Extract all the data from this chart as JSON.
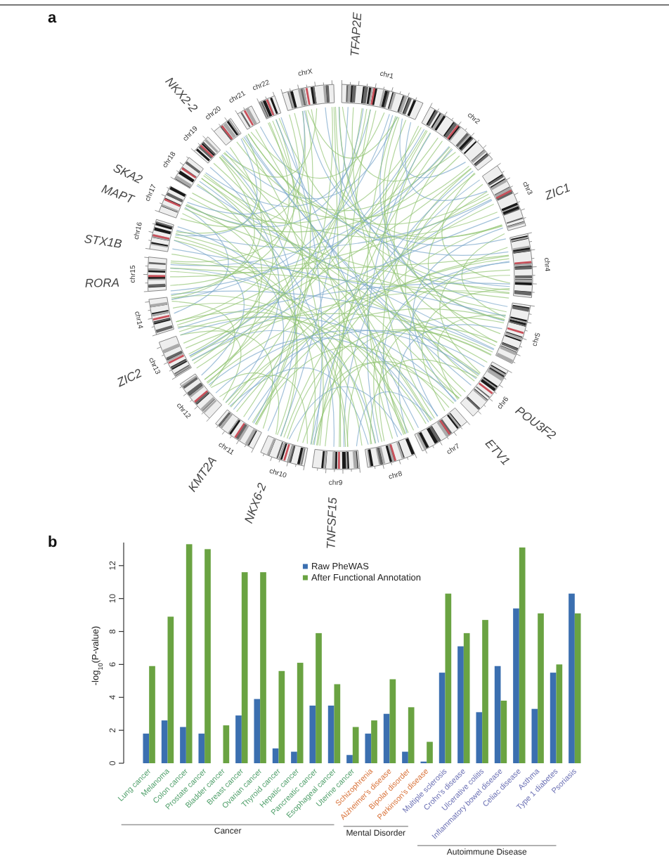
{
  "chart_data": [
    {
      "type": "other",
      "title": "a",
      "categories": [
        "chr1",
        "chr2",
        "chr3",
        "chr4",
        "chr5",
        "chr6",
        "chr7",
        "chr8",
        "chr9",
        "chr10",
        "chr11",
        "chr12",
        "chr13",
        "chr14",
        "chr15",
        "chr16",
        "chr17",
        "chr18",
        "chr19",
        "chr20",
        "chr21",
        "chr22",
        "chrX"
      ],
      "annotations": [
        "TFAP2E",
        "ZIC1",
        "POU3F2",
        "ETV1",
        "TNFSF15",
        "NKX6-2",
        "KMT2A",
        "ZIC2",
        "RORA",
        "STX1B",
        "MAPT",
        "SKA2",
        "NKX2-2"
      ]
    },
    {
      "type": "bar",
      "title": "b",
      "ylabel": "-log$_{10}$(P-value)",
      "categories": [
        "Lung cancer",
        "Melanoma",
        "Colon cancer",
        "Prostate cancer",
        "Bladder cancer",
        "Breast cancer",
        "Ovarian cancer",
        "Thyroid cancer",
        "Hepatic cancer",
        "Pancreatic cancer",
        "Esophageal cancer",
        "Uterine cancer",
        "Schizophrenia",
        "Alzheimer's disease",
        "Bipolar disorder",
        "Parkinson's disease",
        "Multiple sclerosis",
        "Crohn's disease",
        "Ulcerative colitis",
        "Inflammatory bowel disease",
        "Celiac disease",
        "Asthma",
        "Type 1 diabetes",
        "Psoriasis"
      ],
      "series": [
        {
          "name": "Raw PheWAS",
          "color": "#3b6fb0",
          "values": [
            1.8,
            2.6,
            2.2,
            1.8,
            null,
            2.9,
            3.9,
            0.9,
            0.7,
            3.5,
            3.5,
            0.5,
            1.8,
            3.0,
            0.7,
            0.1,
            5.5,
            7.1,
            3.1,
            5.9,
            9.4,
            3.3,
            5.5,
            10.3
          ]
        },
        {
          "name": "After Functional Annotation",
          "color": "#6aa342",
          "values": [
            5.9,
            8.9,
            13.3,
            13.0,
            2.3,
            11.6,
            11.6,
            5.6,
            6.1,
            7.9,
            4.8,
            2.2,
            2.6,
            5.1,
            3.4,
            1.3,
            10.3,
            7.9,
            8.7,
            3.8,
            13.1,
            9.1,
            6.0,
            9.1
          ]
        }
      ],
      "ylim": [
        0,
        13.4
      ],
      "yticks": [
        0,
        2,
        4,
        6,
        8,
        10,
        12
      ],
      "legend": "top",
      "annotations": [
        "Cancer",
        "Mental Disorder",
        "Autoimmune Disease"
      ]
    }
  ]
}
